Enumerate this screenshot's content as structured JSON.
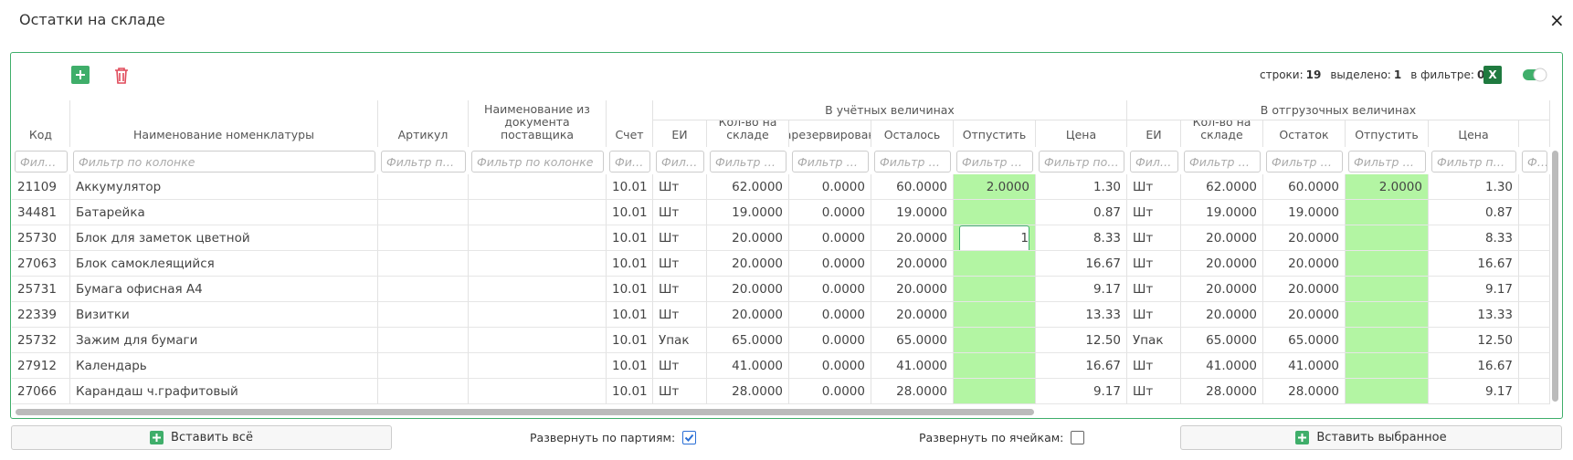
{
  "title": "Остатки на складе",
  "close": "×",
  "toolbar": {
    "stats": [
      {
        "label": "строки:",
        "value": 19
      },
      {
        "label": "выделено:",
        "value": 1
      },
      {
        "label": "в фильтре:",
        "value": 0
      }
    ],
    "excel": "X"
  },
  "table": {
    "columns": [
      "Код",
      "Наименование номенклатуры",
      "Артикул",
      "Наименование из документа поставщика",
      "Счет",
      {
        "group": "В учётных величинах",
        "columns": [
          "ЕИ",
          "Кол-во на складе",
          "Зарезервировано",
          "Осталось",
          "Отпустить",
          "Цена"
        ]
      },
      {
        "group": "В отгрузочных величинах",
        "columns": [
          "ЕИ",
          "Кол-во на складе",
          "Остаток",
          "Отпустить",
          "Цена"
        ]
      }
    ],
    "filter_placeholder": "Фильтр по колонке",
    "rows": [
      [
        "21109",
        "Аккумулятор",
        null,
        null,
        "10.01",
        "Шт",
        "62.0000",
        "0.0000",
        "60.0000",
        "2.0000",
        "1.30",
        "Шт",
        "62.0000",
        "60.0000",
        "2.0000",
        "1.30"
      ],
      [
        "34481",
        "Батарейка",
        null,
        null,
        "10.01",
        "Шт",
        "19.0000",
        "0.0000",
        "19.0000",
        null,
        "0.87",
        "Шт",
        "19.0000",
        "19.0000",
        null,
        "0.87"
      ],
      [
        "25730",
        "Блок для заметок цветной",
        null,
        null,
        "10.01",
        "Шт",
        "20.0000",
        "0.0000",
        "20.0000",
        "1",
        "8.33",
        "Шт",
        "20.0000",
        "20.0000",
        null,
        "8.33"
      ],
      [
        "27063",
        "Блок самоклеящийся",
        null,
        null,
        "10.01",
        "Шт",
        "20.0000",
        "0.0000",
        "20.0000",
        null,
        "16.67",
        "Шт",
        "20.0000",
        "20.0000",
        null,
        "16.67"
      ],
      [
        "25731",
        "Бумага офисная А4",
        null,
        null,
        "10.01",
        "Шт",
        "20.0000",
        "0.0000",
        "20.0000",
        null,
        "9.17",
        "Шт",
        "20.0000",
        "20.0000",
        null,
        "9.17"
      ],
      [
        "22339",
        "Визитки",
        null,
        null,
        "10.01",
        "Шт",
        "20.0000",
        "0.0000",
        "20.0000",
        null,
        "13.33",
        "Шт",
        "20.0000",
        "20.0000",
        null,
        "13.33"
      ],
      [
        "25732",
        "Зажим для бумаги",
        null,
        null,
        "10.01",
        "Упак",
        "65.0000",
        "0.0000",
        "65.0000",
        null,
        "12.50",
        "Упак",
        "65.0000",
        "65.0000",
        null,
        "12.50"
      ],
      [
        "27912",
        "Календарь",
        null,
        null,
        "10.01",
        "Шт",
        "41.0000",
        "0.0000",
        "41.0000",
        null,
        "16.67",
        "Шт",
        "41.0000",
        "41.0000",
        null,
        "16.67"
      ],
      [
        "27066",
        "Карандаш ч.графитовый",
        null,
        null,
        "10.01",
        "Шт",
        "28.0000",
        "0.0000",
        "28.0000",
        null,
        "9.17",
        "Шт",
        "28.0000",
        "28.0000",
        null,
        "9.17"
      ]
    ],
    "editing_cell": {
      "row": 2,
      "column": 9
    }
  },
  "footer": {
    "buttons": [
      "Вставить всё",
      "Вставить выбранное"
    ],
    "checkboxes": [
      {
        "label": "Развернуть по партиям:",
        "checked": true
      },
      {
        "label": "Развернуть по ячейкам:",
        "checked": false
      }
    ]
  }
}
